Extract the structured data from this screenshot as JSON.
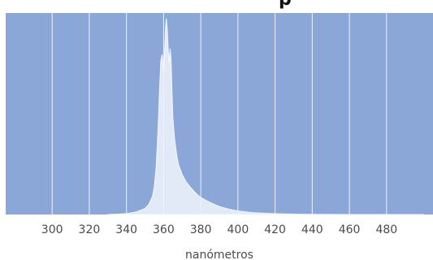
{
  "chart_data": {
    "type": "area",
    "title": "",
    "title_partial": "p",
    "xlabel": "nanómetros",
    "ylabel": "",
    "xlim": [
      275,
      505
    ],
    "ylim": [
      0,
      1
    ],
    "x_ticks": [
      300,
      320,
      340,
      360,
      380,
      400,
      420,
      440,
      460,
      480
    ],
    "grid": true,
    "legend": "none",
    "colors": {
      "plot_background": "#8ba7d8",
      "grid": "#ffffff",
      "area_fill": "#eef2fa",
      "area_stroke": "#f7f9fd"
    },
    "series": [
      {
        "x": [
          330,
          340,
          345,
          350,
          352,
          354,
          355,
          356,
          357,
          357.8,
          358.5,
          359.2,
          360,
          360.5,
          361,
          361.5,
          362,
          362.5,
          363,
          363.5,
          364,
          364.5,
          365,
          366,
          367,
          368,
          370,
          372,
          375,
          378,
          380,
          385,
          390,
          395,
          400,
          405,
          410,
          420,
          430,
          440,
          460,
          480,
          500
        ],
        "values": [
          0.0,
          0.004,
          0.012,
          0.03,
          0.05,
          0.09,
          0.14,
          0.24,
          0.42,
          0.62,
          0.77,
          0.8,
          0.72,
          0.8,
          0.93,
          0.98,
          0.92,
          0.82,
          0.76,
          0.83,
          0.78,
          0.62,
          0.48,
          0.37,
          0.3,
          0.25,
          0.2,
          0.165,
          0.13,
          0.1,
          0.085,
          0.06,
          0.04,
          0.027,
          0.018,
          0.012,
          0.008,
          0.004,
          0.002,
          0.001,
          0.0,
          0.0,
          0.0
        ]
      }
    ]
  }
}
